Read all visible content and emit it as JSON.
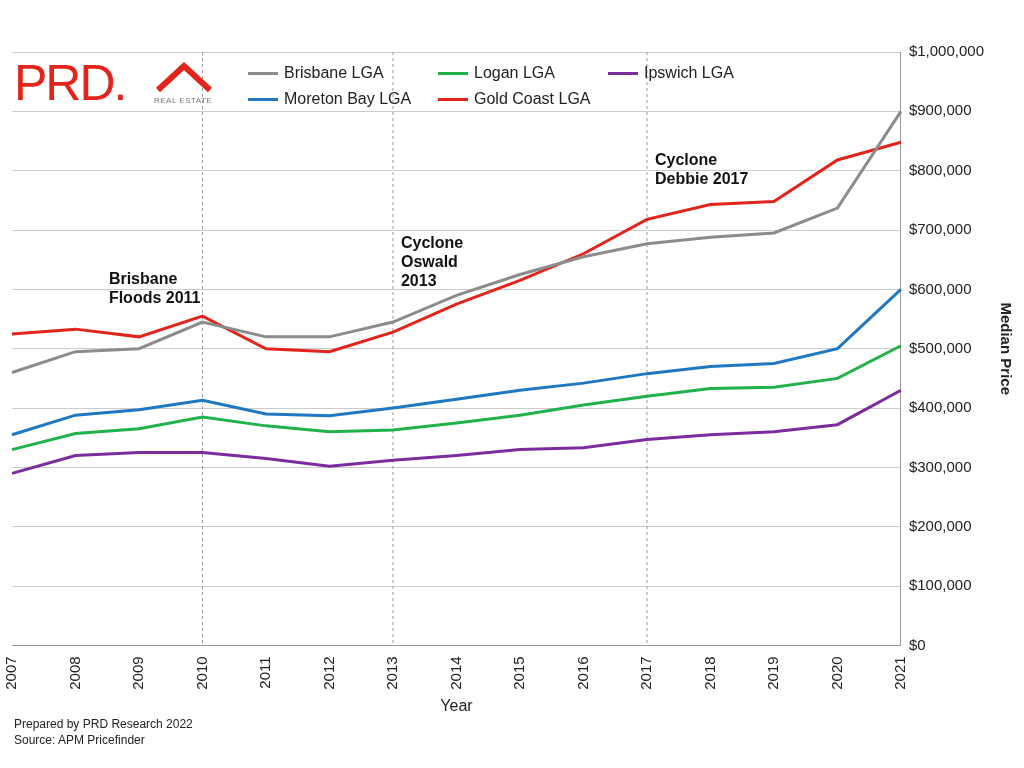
{
  "chart_data": {
    "type": "line",
    "categories": [
      "2007",
      "2008",
      "2009",
      "2010",
      "2011",
      "2012",
      "2013",
      "2014",
      "2015",
      "2016",
      "2017",
      "2018",
      "2019",
      "2020",
      "2021"
    ],
    "series": [
      {
        "name": "Brisbane LGA",
        "color": "#8c8c8c",
        "values": [
          460000,
          495000,
          500000,
          545000,
          520000,
          520000,
          545000,
          590000,
          625000,
          655000,
          677000,
          688000,
          695000,
          737000,
          900000
        ]
      },
      {
        "name": "Logan LGA",
        "color": "#21b24b",
        "values": [
          330000,
          357000,
          365000,
          385000,
          370000,
          360000,
          363000,
          375000,
          388000,
          405000,
          420000,
          433000,
          435000,
          450000,
          505000
        ]
      },
      {
        "name": "Ipswich LGA",
        "color": "#7b2c9e",
        "values": [
          290000,
          320000,
          325000,
          325000,
          315000,
          302000,
          312000,
          320000,
          330000,
          333000,
          347000,
          355000,
          360000,
          372000,
          430000
        ]
      },
      {
        "name": "Moreton Bay LGA",
        "color": "#1f78c1",
        "values": [
          355000,
          388000,
          397000,
          413000,
          390000,
          387000,
          400000,
          415000,
          430000,
          442000,
          458000,
          470000,
          475000,
          500000,
          600000
        ]
      },
      {
        "name": "Gold Coast LGA",
        "color": "#e3241b",
        "values": [
          525000,
          533000,
          520000,
          555000,
          500000,
          495000,
          528000,
          575000,
          615000,
          660000,
          718000,
          743000,
          748000,
          818000,
          848000
        ]
      }
    ],
    "x_label": "Year",
    "y_label": "Median Price",
    "ylim": [
      0,
      1000000
    ],
    "yticks": [
      {
        "value": 0,
        "label": "$0"
      },
      {
        "value": 100000,
        "label": "$100,000"
      },
      {
        "value": 200000,
        "label": "$200,000"
      },
      {
        "value": 300000,
        "label": "$300,000"
      },
      {
        "value": 400000,
        "label": "$400,000"
      },
      {
        "value": 500000,
        "label": "$500,000"
      },
      {
        "value": 600000,
        "label": "$600,000"
      },
      {
        "value": 700000,
        "label": "$700,000"
      },
      {
        "value": 800000,
        "label": "$800,000"
      },
      {
        "value": 900000,
        "label": "$900,000"
      },
      {
        "value": 1000000,
        "label": "$1,000,000"
      }
    ],
    "grid": true,
    "legend": "top",
    "annotations": [
      {
        "x": "2010",
        "lines": [
          "Brisbane",
          "Floods 2011"
        ]
      },
      {
        "x": "2013",
        "lines": [
          "Cyclone",
          "Oswald",
          "2013"
        ]
      },
      {
        "x": "2017",
        "lines": [
          "Cyclone",
          "Debbie 2017"
        ]
      }
    ],
    "logo": {
      "text": "PRD.",
      "subtext": "REAL ESTATE"
    },
    "footnotes": [
      "Prepared by PRD Research 2022",
      "Source: APM Pricefinder"
    ]
  }
}
